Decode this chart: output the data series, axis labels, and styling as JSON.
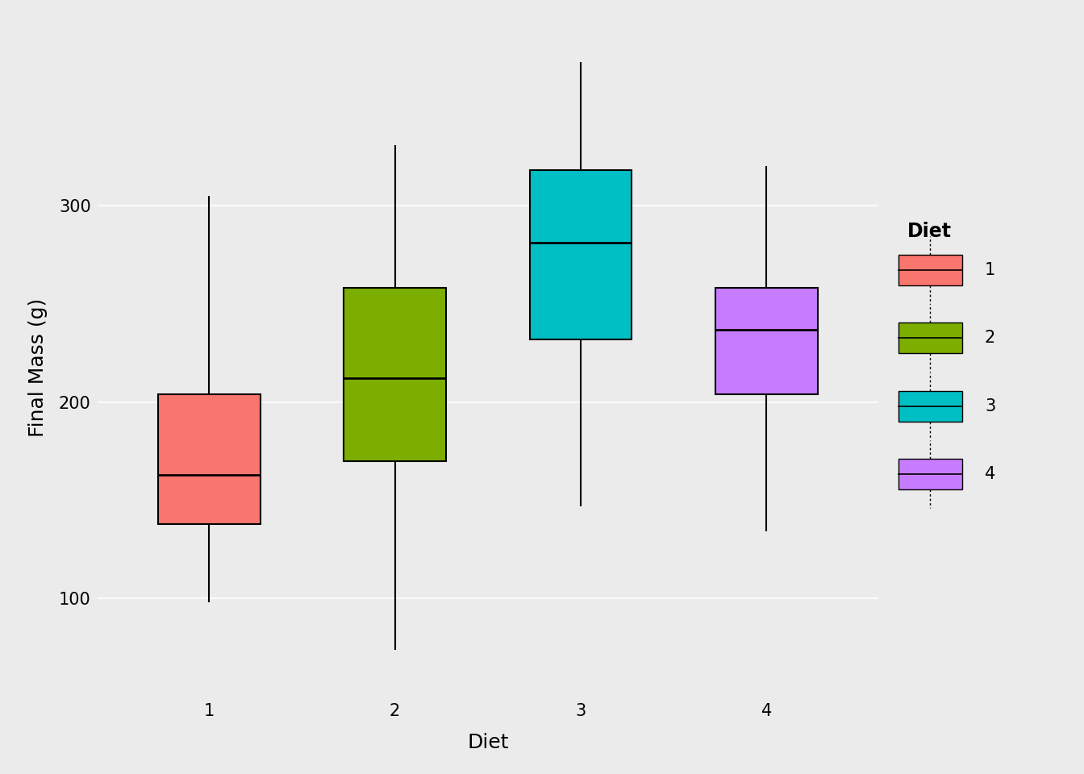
{
  "title": "",
  "xlabel": "Diet",
  "ylabel": "Final Mass (g)",
  "background_color": "#EBEBEB",
  "panel_background": "#EBEBEB",
  "grid_color": "#FFFFFF",
  "box_colors": [
    "#F8766D",
    "#7CAE00",
    "#00BFC4",
    "#C77CFF"
  ],
  "diet_labels": [
    "1",
    "2",
    "3",
    "4"
  ],
  "legend_title": "Diet",
  "ylim": [
    50,
    385
  ],
  "yticks": [
    100,
    200,
    300
  ],
  "box_data": {
    "1": {
      "whisker_low": 98,
      "q1": 138,
      "median": 163,
      "q3": 204,
      "whisker_high": 305
    },
    "2": {
      "whisker_low": 74,
      "q1": 170,
      "median": 212,
      "q3": 258,
      "whisker_high": 331
    },
    "3": {
      "whisker_low": 147,
      "q1": 232,
      "median": 281,
      "q3": 318,
      "whisker_high": 373
    },
    "4": {
      "whisker_low": 134,
      "q1": 204,
      "median": 237,
      "q3": 258,
      "whisker_high": 320
    }
  },
  "box_width": 0.55,
  "linewidth": 1.5,
  "axis_label_fontsize": 18,
  "tick_fontsize": 15,
  "legend_fontsize": 15,
  "legend_title_fontsize": 17
}
